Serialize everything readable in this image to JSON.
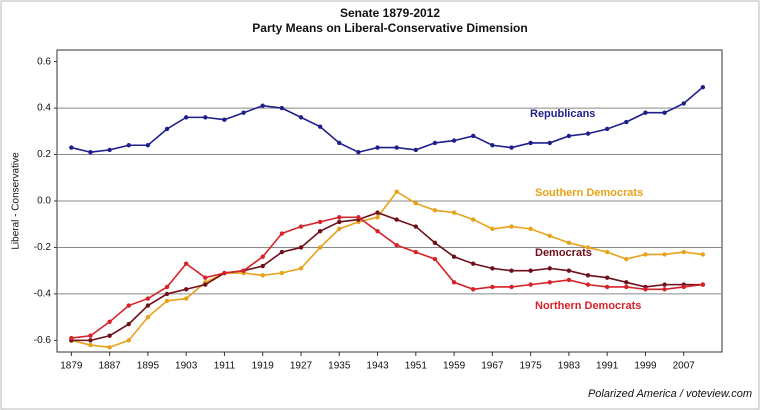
{
  "chart_data": {
    "type": "line",
    "title": "Senate 1879-2012",
    "subtitle": "Party Means on Liberal-Conservative Dimension",
    "y_label": "Liberal - Conservative",
    "source": "Polarized America / voteview.com",
    "x": [
      1879,
      1883,
      1887,
      1891,
      1895,
      1899,
      1903,
      1907,
      1911,
      1915,
      1919,
      1923,
      1927,
      1931,
      1935,
      1939,
      1943,
      1947,
      1951,
      1955,
      1959,
      1963,
      1967,
      1971,
      1975,
      1979,
      1983,
      1987,
      1991,
      1995,
      1999,
      2003,
      2007,
      2011
    ],
    "xlim": [
      1876,
      2015
    ],
    "xticks": [
      1879,
      1887,
      1895,
      1903,
      1911,
      1919,
      1927,
      1935,
      1943,
      1951,
      1959,
      1967,
      1975,
      1983,
      1991,
      1999,
      2007
    ],
    "ylim": [
      -0.65,
      0.65
    ],
    "yticks": [
      0.6,
      0.4,
      0.2,
      {
        "value": 0,
        "label": "0.0"
      },
      -0.2,
      -0.4,
      -0.6
    ],
    "grid": true,
    "series": [
      {
        "name": "Republicans",
        "color": "#1f1f8c",
        "values": [
          0.23,
          0.21,
          0.22,
          0.24,
          0.24,
          0.31,
          0.36,
          0.36,
          0.35,
          0.38,
          0.41,
          0.4,
          0.36,
          0.32,
          0.25,
          0.21,
          0.23,
          0.23,
          0.22,
          0.25,
          0.26,
          0.28,
          0.24,
          0.23,
          0.25,
          0.25,
          0.28,
          0.29,
          0.31,
          0.34,
          0.38,
          0.38,
          0.42,
          0.49
        ]
      },
      {
        "name": "Southern Democrats",
        "color": "#e8a21a",
        "values": [
          -0.6,
          -0.62,
          -0.63,
          -0.6,
          -0.5,
          -0.43,
          -0.42,
          -0.35,
          -0.31,
          -0.31,
          -0.32,
          -0.31,
          -0.29,
          -0.2,
          -0.12,
          -0.09,
          -0.07,
          0.04,
          -0.01,
          -0.04,
          -0.05,
          -0.08,
          -0.12,
          -0.11,
          -0.12,
          -0.15,
          -0.18,
          -0.2,
          -0.22,
          -0.25,
          -0.23,
          -0.23,
          -0.22,
          -0.23
        ]
      },
      {
        "name": "Democrats",
        "color": "#6e0f1a",
        "values": [
          -0.6,
          -0.6,
          -0.58,
          -0.53,
          -0.45,
          -0.4,
          -0.38,
          -0.36,
          -0.31,
          -0.3,
          -0.28,
          -0.22,
          -0.2,
          -0.13,
          -0.09,
          -0.08,
          -0.05,
          -0.08,
          -0.11,
          -0.18,
          -0.24,
          -0.27,
          -0.29,
          -0.3,
          -0.3,
          -0.29,
          -0.3,
          -0.32,
          -0.33,
          -0.35,
          -0.37,
          -0.36,
          -0.36,
          -0.36
        ]
      },
      {
        "name": "Northern Democrats",
        "color": "#d8222a",
        "values": [
          -0.59,
          -0.58,
          -0.52,
          -0.45,
          -0.42,
          -0.37,
          -0.27,
          -0.33,
          -0.31,
          -0.3,
          -0.24,
          -0.14,
          -0.11,
          -0.09,
          -0.07,
          -0.07,
          -0.13,
          -0.19,
          -0.22,
          -0.25,
          -0.35,
          -0.38,
          -0.37,
          -0.37,
          -0.36,
          -0.35,
          -0.34,
          -0.36,
          -0.37,
          -0.37,
          -0.38,
          -0.38,
          -0.37,
          -0.36
        ]
      }
    ]
  }
}
